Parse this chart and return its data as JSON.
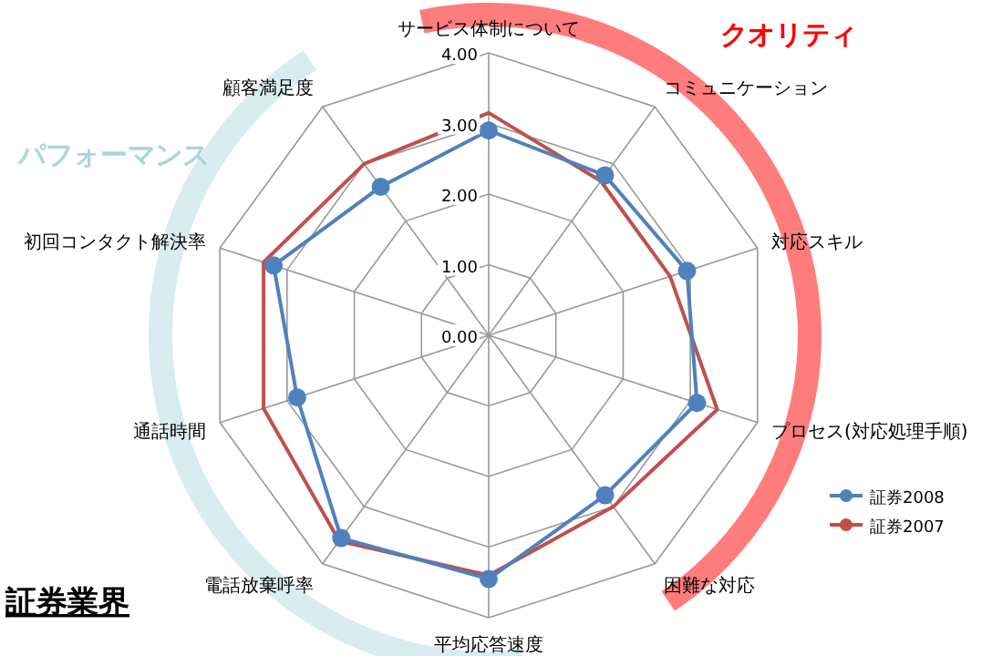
{
  "chart_data": {
    "type": "radar",
    "title": "証券業界",
    "categories": [
      "サービス体制について",
      "コミュニケーション",
      "対応スキル",
      "プロセス(対応処理手順)",
      "困難な対応",
      "平均応答速度",
      "電話放棄呼率",
      "通話時間",
      "初回コンタクト解決率",
      "顧客満足度"
    ],
    "series": [
      {
        "name": "証券2008",
        "color": "#4f81bd",
        "marker": "circle",
        "values": [
          2.9,
          2.8,
          2.95,
          3.1,
          2.8,
          3.45,
          3.55,
          2.85,
          3.2,
          2.6
        ]
      },
      {
        "name": "証券2007",
        "color": "#c0504d",
        "marker": "none",
        "values": [
          3.15,
          2.7,
          2.7,
          3.4,
          3.0,
          3.4,
          3.6,
          3.35,
          3.35,
          3.0
        ]
      }
    ],
    "ylim": [
      0,
      4
    ],
    "yticks": [
      {
        "value": 0,
        "label": "0.00"
      },
      {
        "value": 1,
        "label": "1.00"
      },
      {
        "value": 2,
        "label": "2.00"
      },
      {
        "value": 3,
        "label": "3.00"
      },
      {
        "value": 4,
        "label": "4.00"
      }
    ],
    "grid": true,
    "legend": "right",
    "annotations": [
      "クオリティ",
      "パフォーマンス"
    ]
  }
}
